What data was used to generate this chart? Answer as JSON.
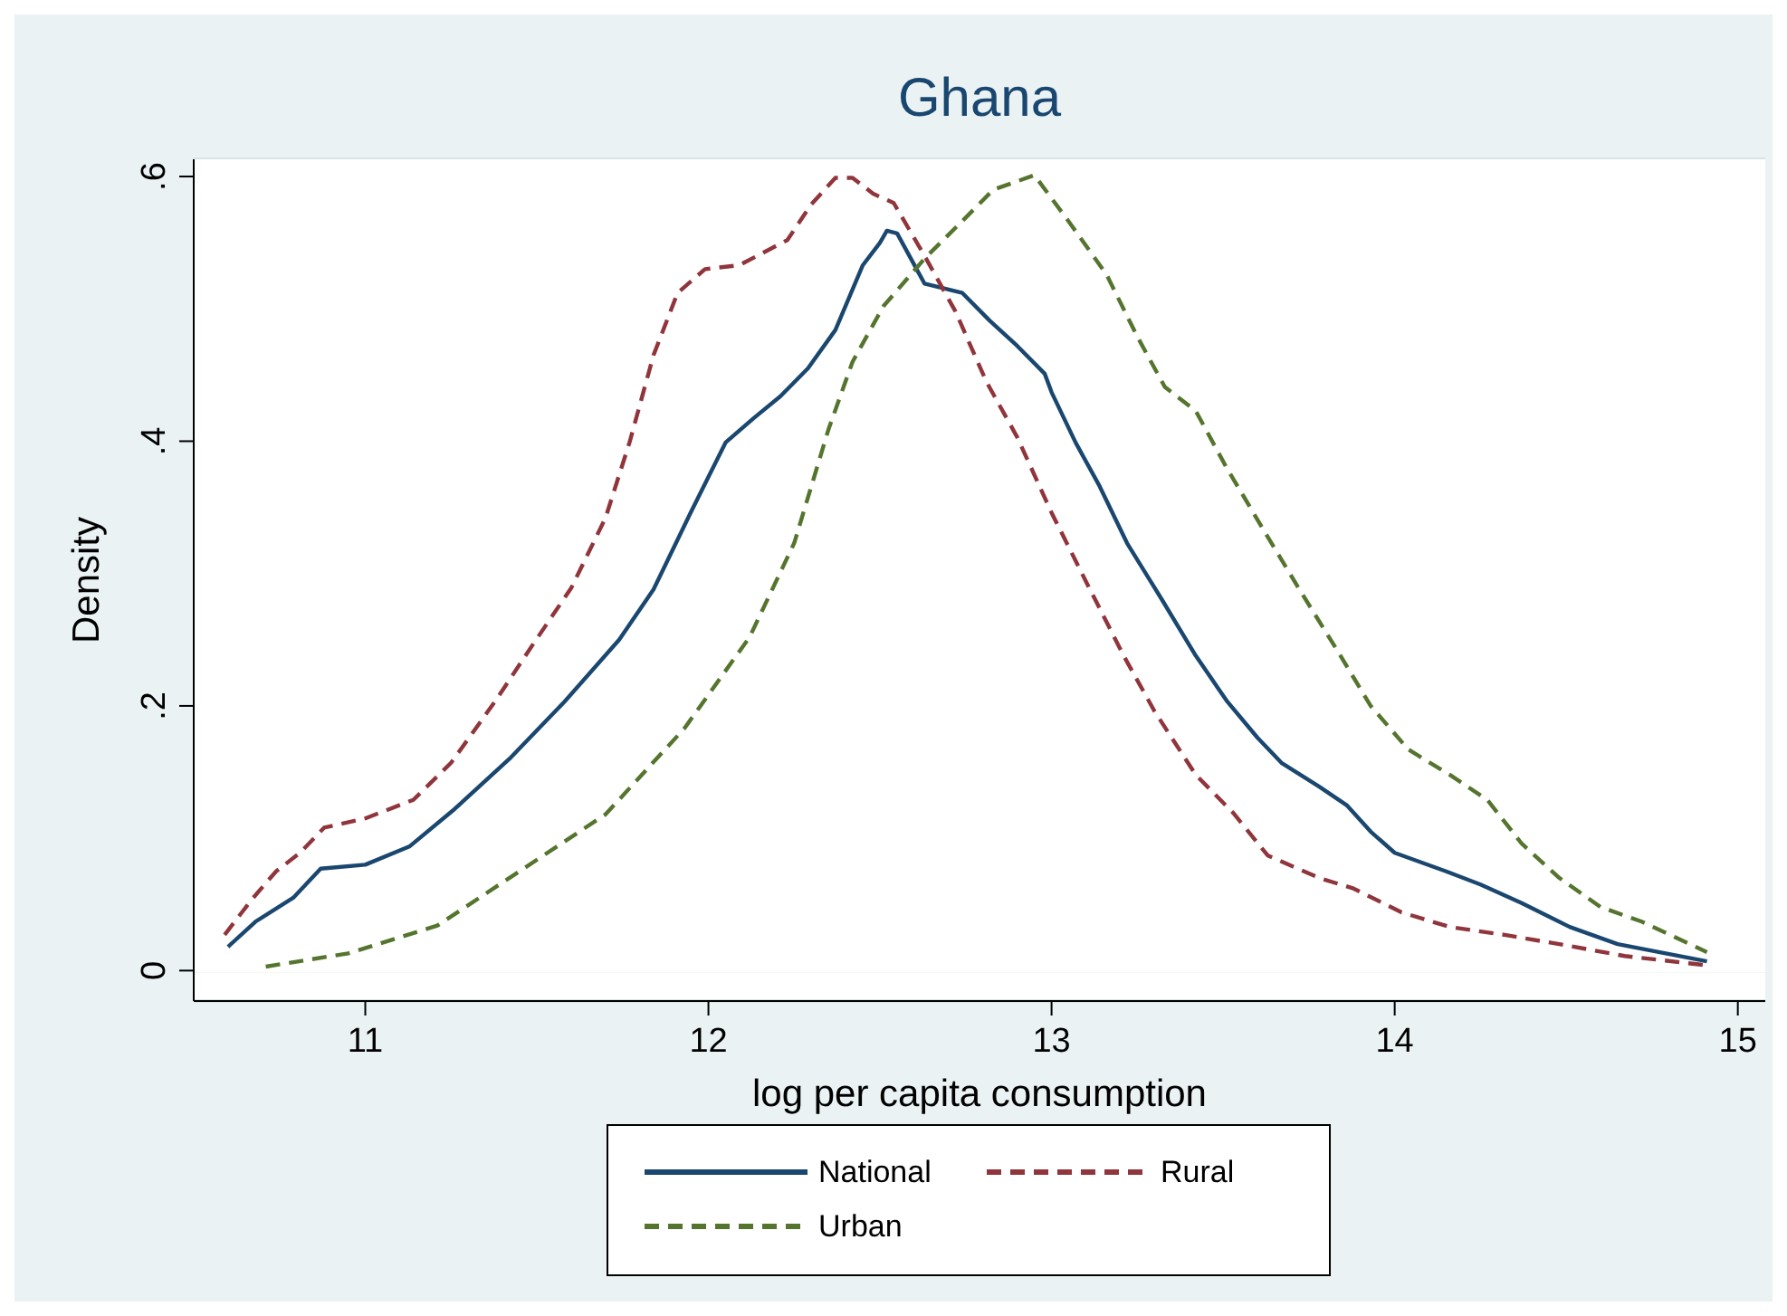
{
  "chart_data": {
    "type": "line",
    "title": "Ghana",
    "xlabel": "log per capita consumption",
    "ylabel": "Density",
    "xlim": [
      10.5,
      15.08
    ],
    "ylim": [
      -0.023,
      0.613
    ],
    "xticks": [
      11,
      12,
      13,
      14,
      15
    ],
    "yticks": [
      0,
      {
        "value": 0.2,
        "label": ".2"
      },
      {
        "value": 0.4,
        "label": ".4"
      },
      {
        "value": 0.6,
        "label": ".6"
      }
    ],
    "grid": "y",
    "legend": "bottom",
    "marker": "none",
    "series": [
      {
        "name": "National",
        "color": "#1a476f",
        "line_style": "solid",
        "x": [
          10.6,
          10.68,
          10.79,
          10.87,
          11.0,
          11.13,
          11.26,
          11.42,
          11.58,
          11.74,
          11.84,
          11.95,
          12.05,
          12.13,
          12.21,
          12.29,
          12.37,
          12.45,
          12.5,
          12.52,
          12.55,
          12.63,
          12.74,
          12.82,
          12.9,
          12.98,
          13.0,
          13.07,
          13.14,
          13.22,
          13.32,
          13.42,
          13.51,
          13.6,
          13.67,
          13.78,
          13.86,
          13.93,
          14.0,
          14.15,
          14.25,
          14.37,
          14.51,
          14.65,
          14.79,
          14.91
        ],
        "values": [
          0.018,
          0.037,
          0.055,
          0.077,
          0.08,
          0.094,
          0.122,
          0.16,
          0.203,
          0.25,
          0.288,
          0.347,
          0.399,
          0.417,
          0.434,
          0.455,
          0.484,
          0.533,
          0.55,
          0.559,
          0.557,
          0.519,
          0.512,
          0.491,
          0.472,
          0.451,
          0.437,
          0.399,
          0.366,
          0.323,
          0.281,
          0.238,
          0.204,
          0.176,
          0.157,
          0.139,
          0.125,
          0.105,
          0.089,
          0.075,
          0.065,
          0.051,
          0.033,
          0.02,
          0.013,
          0.007
        ]
      },
      {
        "name": "Rural",
        "color": "#90353b",
        "line_style": "dashed",
        "x": [
          10.59,
          10.67,
          10.74,
          10.81,
          10.88,
          11.0,
          11.14,
          11.25,
          11.38,
          11.49,
          11.6,
          11.7,
          11.77,
          11.84,
          11.91,
          11.99,
          12.09,
          12.23,
          12.3,
          12.37,
          12.42,
          12.48,
          12.54,
          12.63,
          12.72,
          12.81,
          12.9,
          13.0,
          13.11,
          13.21,
          13.3,
          13.42,
          13.53,
          13.63,
          13.78,
          13.88,
          14.02,
          14.16,
          14.32,
          14.48,
          14.67,
          14.91
        ],
        "values": [
          0.027,
          0.054,
          0.075,
          0.089,
          0.108,
          0.115,
          0.129,
          0.157,
          0.204,
          0.247,
          0.289,
          0.342,
          0.399,
          0.465,
          0.512,
          0.53,
          0.533,
          0.552,
          0.579,
          0.599,
          0.599,
          0.587,
          0.58,
          0.54,
          0.498,
          0.445,
          0.403,
          0.346,
          0.289,
          0.238,
          0.196,
          0.148,
          0.119,
          0.087,
          0.07,
          0.062,
          0.044,
          0.033,
          0.027,
          0.02,
          0.011,
          0.004
        ]
      },
      {
        "name": "Urban",
        "color": "#55752f",
        "line_style": "dashed",
        "x": [
          10.71,
          10.95,
          11.21,
          11.49,
          11.7,
          11.93,
          12.12,
          12.25,
          12.35,
          12.42,
          12.51,
          12.63,
          12.75,
          12.83,
          12.95,
          13.05,
          13.16,
          13.25,
          13.33,
          13.42,
          13.51,
          13.62,
          13.72,
          13.83,
          13.93,
          14.04,
          14.16,
          14.27,
          14.37,
          14.48,
          14.6,
          14.72,
          14.91
        ],
        "values": [
          0.003,
          0.013,
          0.034,
          0.082,
          0.118,
          0.183,
          0.252,
          0.323,
          0.409,
          0.46,
          0.502,
          0.538,
          0.569,
          0.59,
          0.601,
          0.566,
          0.526,
          0.479,
          0.441,
          0.423,
          0.38,
          0.332,
          0.289,
          0.243,
          0.2,
          0.167,
          0.148,
          0.129,
          0.096,
          0.07,
          0.048,
          0.037,
          0.014
        ]
      }
    ]
  }
}
